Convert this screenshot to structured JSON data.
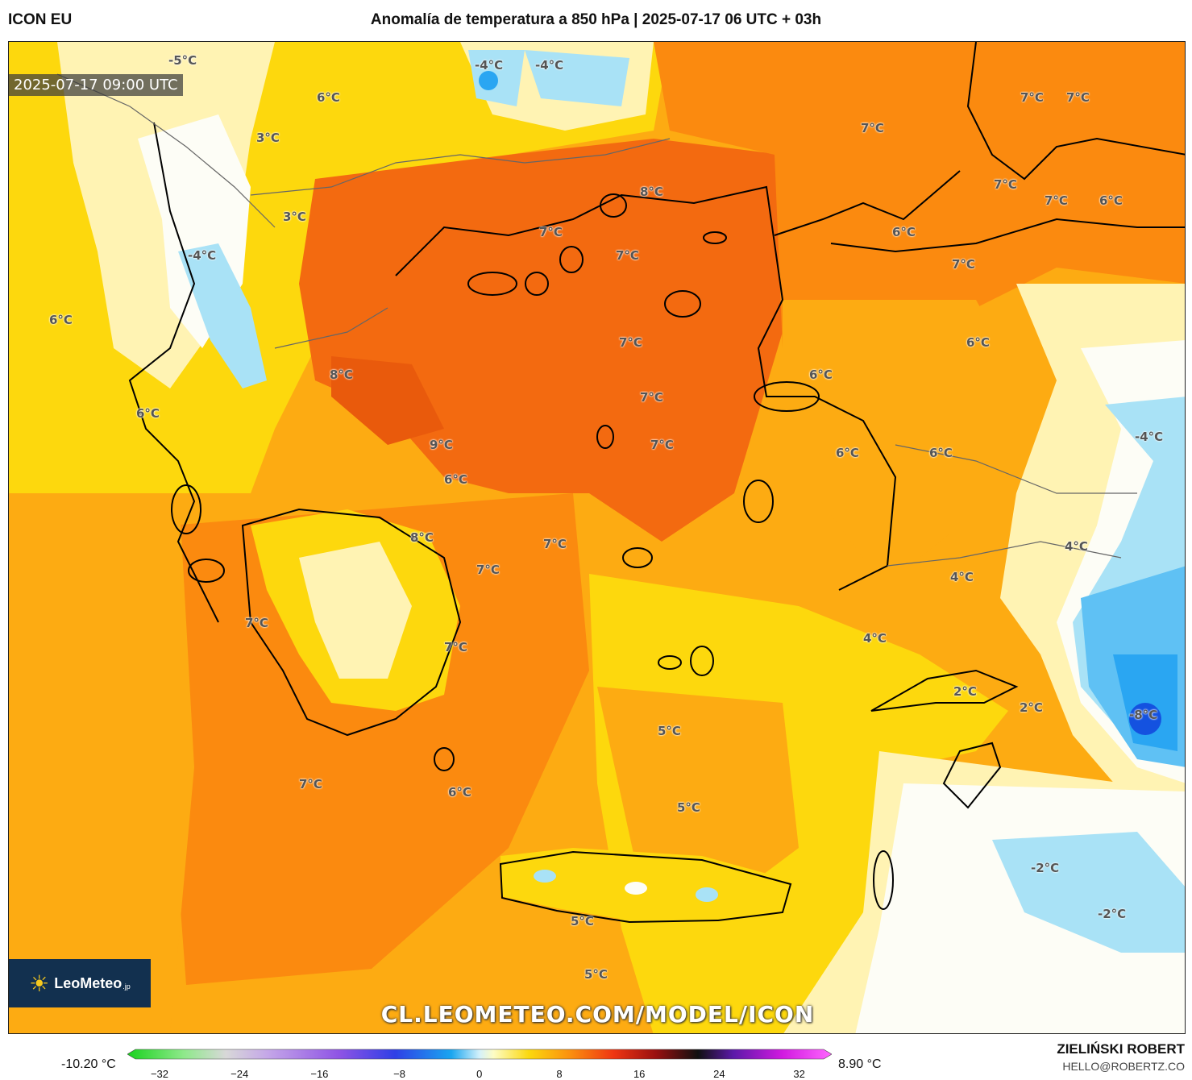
{
  "header": {
    "model": "ICON EU",
    "title": "Anomalía de temperatura a 850 hPa | 2025-07-17 06 UTC + 03h"
  },
  "map": {
    "valid_time": "2025-07-17 09:00 UTC",
    "watermark_url": "CL.LEOMETEO.COM/MODEL/ICON",
    "logo_text_bold": "LeoMeteo",
    "logo_text_suffix": ".jp",
    "labels": [
      "-5°C",
      "-4°C",
      "-4°C",
      "6°C",
      "3°C",
      "3°C",
      "-4°C",
      "6°C",
      "8°C",
      "6°C",
      "9°C",
      "8°C",
      "6°C",
      "7°C",
      "7°C",
      "7°C",
      "7°C",
      "8°C",
      "7°C",
      "7°C",
      "7°C",
      "7°C",
      "7°C",
      "7°C",
      "7°C",
      "7°C",
      "7°C",
      "7°C",
      "6°C",
      "7°C",
      "6°C",
      "6°C",
      "6°C",
      "6°C",
      "6°C",
      "-4°C",
      "4°C",
      "4°C",
      "4°C",
      "2°C",
      "2°C",
      "-8°C",
      "5°C",
      "5°C",
      "5°C",
      "5°C",
      "6°C",
      "7°C",
      "-2°C",
      "-2°C"
    ]
  },
  "colorbar": {
    "min_label": "-10.20 °C",
    "max_label": "8.90 °C",
    "ticks": [
      "−32",
      "−24",
      "−16",
      "−8",
      "0",
      "8",
      "16",
      "24",
      "32"
    ]
  },
  "credits": {
    "author": "ZIELIŃSKI ROBERT",
    "email": "HELLO@ROBERTZ.CO"
  },
  "colors": {
    "deep_orange": "#f36a10",
    "orange": "#fb8a0f",
    "light_orange": "#fdab12",
    "yellow": "#fdd80d",
    "pale_yellow": "#fff3b3",
    "white": "#fdfdf6",
    "light_blue": "#a9e2f6",
    "blue": "#2aa6f2",
    "deep_blue": "#1452e0"
  }
}
